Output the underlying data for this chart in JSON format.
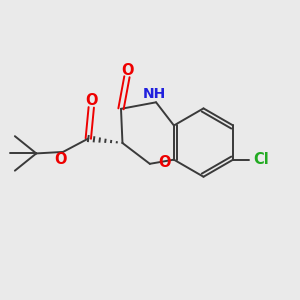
{
  "bg_color": "#eaeaea",
  "bond_color": "#3a3a3a",
  "atom_colors": {
    "O": "#ee0000",
    "N": "#2020dd",
    "Cl": "#22aa22",
    "H": "#888888"
  },
  "line_width": 1.4,
  "font_size": 10.5
}
